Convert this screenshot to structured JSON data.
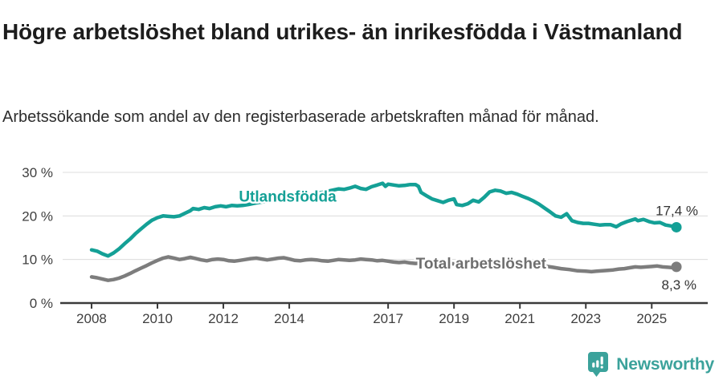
{
  "header": {
    "title": "Högre arbetslöshet bland utrikes- än inrikesfödda i Västmanland",
    "subtitle": "Arbetssökande som andel av den registerbaserade arbetskraften månad för månad."
  },
  "footer": {
    "brand": "Newsworthy",
    "brand_color": "#3ba29b",
    "logo_icon": "speech-bubble-bar-chart-exclamation"
  },
  "chart_data": {
    "type": "line",
    "title": "Högre arbetslöshet bland utrikes- än inrikesfödda i Västmanland",
    "subtitle": "Arbetssökande som andel av den registerbaserade arbetskraften månad för månad.",
    "xlabel": "",
    "ylabel": "",
    "x_unit": "year",
    "y_unit": "%",
    "xlim": [
      2007.05,
      2026.7
    ],
    "ylim": [
      0,
      30
    ],
    "grid": true,
    "legend_position": "inline-labels",
    "x_ticks": [
      2008,
      2010,
      2012,
      2014,
      2017,
      2019,
      2021,
      2023,
      2025
    ],
    "y_ticks": [
      {
        "value": 0,
        "label": "0 %"
      },
      {
        "value": 10,
        "label": "10 %"
      },
      {
        "value": 20,
        "label": "20 %"
      },
      {
        "value": 30,
        "label": "30 %"
      }
    ],
    "series": [
      {
        "name": "Utlandsfödda",
        "color": "#14a096",
        "label_color": "#14a096",
        "label_pos": {
          "year": 2013.95,
          "value": 23.3
        },
        "end_label": "17,4 %",
        "end_label_offset": [
          27,
          -15
        ],
        "end_value": 17.4,
        "points": [
          [
            2008.0,
            12.2
          ],
          [
            2008.17,
            11.9
          ],
          [
            2008.33,
            11.3
          ],
          [
            2008.5,
            10.8
          ],
          [
            2008.67,
            11.5
          ],
          [
            2008.83,
            12.4
          ],
          [
            2009.0,
            13.6
          ],
          [
            2009.17,
            14.7
          ],
          [
            2009.33,
            15.9
          ],
          [
            2009.5,
            17.0
          ],
          [
            2009.67,
            18.1
          ],
          [
            2009.83,
            19.0
          ],
          [
            2010.0,
            19.6
          ],
          [
            2010.17,
            20.0
          ],
          [
            2010.33,
            19.9
          ],
          [
            2010.5,
            19.8
          ],
          [
            2010.67,
            20.0
          ],
          [
            2010.83,
            20.6
          ],
          [
            2011.0,
            21.2
          ],
          [
            2011.08,
            21.7
          ],
          [
            2011.25,
            21.5
          ],
          [
            2011.42,
            21.9
          ],
          [
            2011.58,
            21.7
          ],
          [
            2011.75,
            22.1
          ],
          [
            2011.92,
            22.3
          ],
          [
            2012.08,
            22.1
          ],
          [
            2012.25,
            22.4
          ],
          [
            2012.42,
            22.3
          ],
          [
            2012.58,
            22.4
          ],
          [
            2012.75,
            22.6
          ],
          [
            2013.0,
            23.0
          ],
          [
            2013.25,
            23.3
          ],
          [
            2013.5,
            23.6
          ],
          [
            2013.75,
            23.9
          ],
          [
            2014.0,
            24.2
          ],
          [
            2014.25,
            24.5
          ],
          [
            2014.5,
            24.8
          ],
          [
            2014.75,
            25.1
          ],
          [
            2015.0,
            25.4
          ],
          [
            2015.25,
            25.8
          ],
          [
            2015.5,
            26.2
          ],
          [
            2015.67,
            26.1
          ],
          [
            2015.83,
            26.4
          ],
          [
            2016.0,
            26.8
          ],
          [
            2016.17,
            26.3
          ],
          [
            2016.33,
            26.1
          ],
          [
            2016.5,
            26.7
          ],
          [
            2016.67,
            27.1
          ],
          [
            2016.83,
            27.5
          ],
          [
            2016.92,
            26.8
          ],
          [
            2017.0,
            27.3
          ],
          [
            2017.17,
            27.1
          ],
          [
            2017.33,
            26.9
          ],
          [
            2017.5,
            27.0
          ],
          [
            2017.67,
            27.2
          ],
          [
            2017.83,
            27.2
          ],
          [
            2017.92,
            26.8
          ],
          [
            2018.0,
            25.4
          ],
          [
            2018.17,
            24.6
          ],
          [
            2018.33,
            23.9
          ],
          [
            2018.5,
            23.5
          ],
          [
            2018.67,
            23.1
          ],
          [
            2018.83,
            23.6
          ],
          [
            2019.0,
            23.9
          ],
          [
            2019.08,
            22.6
          ],
          [
            2019.25,
            22.4
          ],
          [
            2019.42,
            22.8
          ],
          [
            2019.58,
            23.6
          ],
          [
            2019.75,
            23.2
          ],
          [
            2019.92,
            24.3
          ],
          [
            2020.08,
            25.5
          ],
          [
            2020.25,
            25.9
          ],
          [
            2020.42,
            25.7
          ],
          [
            2020.58,
            25.2
          ],
          [
            2020.75,
            25.4
          ],
          [
            2020.92,
            25.0
          ],
          [
            2021.08,
            24.5
          ],
          [
            2021.25,
            24.0
          ],
          [
            2021.42,
            23.4
          ],
          [
            2021.58,
            22.7
          ],
          [
            2021.75,
            21.8
          ],
          [
            2021.92,
            20.9
          ],
          [
            2022.08,
            20.0
          ],
          [
            2022.25,
            19.7
          ],
          [
            2022.42,
            20.5
          ],
          [
            2022.58,
            18.9
          ],
          [
            2022.75,
            18.5
          ],
          [
            2022.92,
            18.3
          ],
          [
            2023.08,
            18.3
          ],
          [
            2023.25,
            18.1
          ],
          [
            2023.42,
            17.9
          ],
          [
            2023.58,
            18.0
          ],
          [
            2023.75,
            18.0
          ],
          [
            2023.92,
            17.5
          ],
          [
            2024.08,
            18.2
          ],
          [
            2024.25,
            18.7
          ],
          [
            2024.42,
            19.1
          ],
          [
            2024.5,
            19.3
          ],
          [
            2024.58,
            18.9
          ],
          [
            2024.75,
            19.2
          ],
          [
            2024.92,
            18.7
          ],
          [
            2025.08,
            18.4
          ],
          [
            2025.25,
            18.5
          ],
          [
            2025.42,
            17.9
          ],
          [
            2025.58,
            17.7
          ],
          [
            2025.75,
            17.4
          ]
        ]
      },
      {
        "name": "Total arbetslöshet",
        "color": "#7d7d7d",
        "label_color": "#6f6f6f",
        "label_pos": {
          "year": 2019.82,
          "value": 7.9
        },
        "end_label": "8,3 %",
        "end_label_offset": [
          25,
          28
        ],
        "end_value": 8.3,
        "points": [
          [
            2008.0,
            6.0
          ],
          [
            2008.17,
            5.8
          ],
          [
            2008.33,
            5.5
          ],
          [
            2008.5,
            5.2
          ],
          [
            2008.67,
            5.4
          ],
          [
            2008.83,
            5.7
          ],
          [
            2009.0,
            6.2
          ],
          [
            2009.17,
            6.8
          ],
          [
            2009.33,
            7.4
          ],
          [
            2009.5,
            8.0
          ],
          [
            2009.67,
            8.6
          ],
          [
            2009.83,
            9.2
          ],
          [
            2010.0,
            9.8
          ],
          [
            2010.17,
            10.3
          ],
          [
            2010.33,
            10.6
          ],
          [
            2010.5,
            10.3
          ],
          [
            2010.67,
            10.0
          ],
          [
            2010.83,
            10.2
          ],
          [
            2011.0,
            10.5
          ],
          [
            2011.17,
            10.2
          ],
          [
            2011.33,
            9.9
          ],
          [
            2011.5,
            9.7
          ],
          [
            2011.67,
            10.0
          ],
          [
            2011.83,
            10.1
          ],
          [
            2012.0,
            10.0
          ],
          [
            2012.17,
            9.7
          ],
          [
            2012.33,
            9.6
          ],
          [
            2012.5,
            9.8
          ],
          [
            2012.67,
            10.0
          ],
          [
            2012.83,
            10.2
          ],
          [
            2013.0,
            10.3
          ],
          [
            2013.17,
            10.1
          ],
          [
            2013.33,
            9.9
          ],
          [
            2013.5,
            10.1
          ],
          [
            2013.67,
            10.3
          ],
          [
            2013.83,
            10.4
          ],
          [
            2014.0,
            10.1
          ],
          [
            2014.17,
            9.8
          ],
          [
            2014.33,
            9.7
          ],
          [
            2014.5,
            9.9
          ],
          [
            2014.67,
            10.0
          ],
          [
            2014.83,
            9.9
          ],
          [
            2015.0,
            9.7
          ],
          [
            2015.17,
            9.6
          ],
          [
            2015.33,
            9.8
          ],
          [
            2015.5,
            10.0
          ],
          [
            2015.67,
            9.9
          ],
          [
            2015.83,
            9.8
          ],
          [
            2016.0,
            9.9
          ],
          [
            2016.17,
            10.1
          ],
          [
            2016.33,
            10.0
          ],
          [
            2016.5,
            9.9
          ],
          [
            2016.67,
            9.7
          ],
          [
            2016.83,
            9.8
          ],
          [
            2017.0,
            9.6
          ],
          [
            2017.17,
            9.4
          ],
          [
            2017.33,
            9.3
          ],
          [
            2017.5,
            9.4
          ],
          [
            2017.67,
            9.2
          ],
          [
            2017.83,
            9.1
          ],
          [
            2018.0,
            9.2
          ],
          [
            2018.17,
            9.1
          ],
          [
            2018.33,
            9.0
          ],
          [
            2018.5,
            9.1
          ],
          [
            2018.67,
            9.2
          ],
          [
            2018.83,
            9.1
          ],
          [
            2019.0,
            9.0
          ],
          [
            2019.25,
            9.1
          ],
          [
            2019.5,
            9.2
          ],
          [
            2019.75,
            9.3
          ],
          [
            2020.0,
            9.4
          ],
          [
            2020.25,
            9.6
          ],
          [
            2020.5,
            9.6
          ],
          [
            2020.75,
            9.5
          ],
          [
            2021.0,
            9.4
          ],
          [
            2021.25,
            9.2
          ],
          [
            2021.5,
            8.9
          ],
          [
            2021.75,
            8.5
          ],
          [
            2022.0,
            8.2
          ],
          [
            2022.25,
            7.9
          ],
          [
            2022.5,
            7.7
          ],
          [
            2022.75,
            7.4
          ],
          [
            2023.0,
            7.3
          ],
          [
            2023.17,
            7.2
          ],
          [
            2023.33,
            7.3
          ],
          [
            2023.5,
            7.4
          ],
          [
            2023.67,
            7.5
          ],
          [
            2023.83,
            7.6
          ],
          [
            2024.0,
            7.8
          ],
          [
            2024.17,
            7.9
          ],
          [
            2024.33,
            8.1
          ],
          [
            2024.5,
            8.3
          ],
          [
            2024.67,
            8.2
          ],
          [
            2024.83,
            8.3
          ],
          [
            2025.0,
            8.4
          ],
          [
            2025.17,
            8.5
          ],
          [
            2025.33,
            8.3
          ],
          [
            2025.5,
            8.2
          ],
          [
            2025.67,
            8.1
          ],
          [
            2025.75,
            8.3
          ]
        ]
      }
    ]
  }
}
